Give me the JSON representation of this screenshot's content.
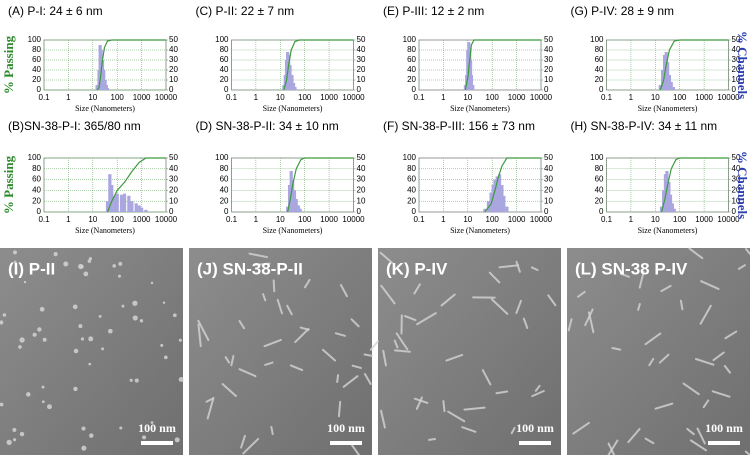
{
  "chart_data": [
    {
      "type": "distribution",
      "title": "(A)   P-I: 24 ±  6 nm",
      "xlabel": "Size (Nanometers)",
      "ylabel": "% Passing",
      "xscale": "log",
      "grid": true,
      "xlim": [
        0.1,
        10000
      ],
      "xticks": [
        0.1,
        1,
        10,
        100,
        1000,
        10000
      ],
      "ylim": [
        0,
        100
      ],
      "yticks": [
        0,
        20,
        40,
        60,
        80,
        100
      ],
      "y2lim": [
        0,
        50
      ],
      "y2ticks": [
        0,
        10,
        20,
        30,
        40,
        50
      ],
      "channels": {
        "color": "#a9a6e0",
        "x": [
          15,
          18,
          20,
          22,
          25,
          28,
          32,
          36,
          40
        ],
        "values": [
          5,
          20,
          45,
          40,
          30,
          20,
          10,
          5,
          2
        ]
      },
      "passing": {
        "color": "#3c9a3c",
        "x": [
          15,
          18,
          20,
          25,
          30,
          40,
          60,
          10000
        ],
        "values": [
          0,
          5,
          20,
          60,
          85,
          98,
          100,
          100
        ]
      }
    },
    {
      "type": "distribution",
      "title": "(C)   P-II: 22 ±  7 nm",
      "xlabel": "Size (Nanometers)",
      "xscale": "log",
      "grid": true,
      "xlim": [
        0.1,
        10000
      ],
      "xticks": [
        0.1,
        1,
        10,
        100,
        1000,
        10000
      ],
      "ylim": [
        0,
        100
      ],
      "yticks": [
        0,
        20,
        40,
        60,
        80,
        100
      ],
      "y2lim": [
        0,
        50
      ],
      "y2ticks": [
        0,
        10,
        20,
        30,
        40,
        50
      ],
      "channels": {
        "color": "#a9a6e0",
        "x": [
          14,
          16,
          18,
          20,
          22,
          25,
          30,
          35,
          40
        ],
        "values": [
          5,
          15,
          30,
          38,
          35,
          25,
          15,
          7,
          3
        ]
      },
      "passing": {
        "color": "#3c9a3c",
        "x": [
          14,
          18,
          22,
          28,
          40,
          60,
          10000
        ],
        "values": [
          0,
          20,
          50,
          80,
          97,
          100,
          100
        ]
      }
    },
    {
      "type": "distribution",
      "title": "(E)   P-III: 12 ± 2 nm",
      "xlabel": "Size (Nanometers)",
      "xscale": "log",
      "grid": true,
      "xlim": [
        0.1,
        10000
      ],
      "xticks": [
        0.1,
        1,
        10,
        100,
        1000,
        10000
      ],
      "ylim": [
        0,
        100
      ],
      "yticks": [
        0,
        20,
        40,
        60,
        80,
        100
      ],
      "y2lim": [
        0,
        50
      ],
      "y2ticks": [
        0,
        10,
        20,
        30,
        40,
        50
      ],
      "channels": {
        "color": "#a9a6e0",
        "x": [
          8,
          9,
          10,
          11,
          12,
          13,
          14,
          16
        ],
        "values": [
          5,
          15,
          40,
          48,
          42,
          30,
          15,
          5
        ]
      },
      "passing": {
        "color": "#3c9a3c",
        "x": [
          8,
          10,
          12,
          14,
          18,
          10000
        ],
        "values": [
          0,
          25,
          60,
          90,
          100,
          100
        ]
      }
    },
    {
      "type": "distribution",
      "title": "(G)   P-IV: 28 ± 9 nm",
      "xlabel": "Size (Nanometers)",
      "y2label": "% Channels",
      "xscale": "log",
      "grid": true,
      "xlim": [
        0.1,
        10000
      ],
      "xticks": [
        0.1,
        1,
        10,
        100,
        1000,
        10000
      ],
      "ylim": [
        0,
        100
      ],
      "yticks": [
        0,
        20,
        40,
        60,
        80,
        100
      ],
      "y2lim": [
        0,
        50
      ],
      "y2ticks": [
        0,
        10,
        20,
        30,
        40,
        50
      ],
      "channels": {
        "color": "#a9a6e0",
        "x": [
          16,
          20,
          24,
          28,
          32,
          38,
          45,
          55
        ],
        "values": [
          5,
          20,
          35,
          38,
          28,
          15,
          8,
          3
        ]
      },
      "passing": {
        "color": "#3c9a3c",
        "x": [
          16,
          22,
          28,
          38,
          60,
          100,
          10000
        ],
        "values": [
          0,
          20,
          50,
          80,
          98,
          100,
          100
        ]
      }
    },
    {
      "type": "distribution",
      "title": "(B)SN-38-P-I: 365/80 nm",
      "xlabel": "Size (Nanometers)",
      "ylabel": "% Passing",
      "xscale": "log",
      "grid": true,
      "xlim": [
        0.1,
        10000
      ],
      "xticks": [
        0.1,
        1,
        10,
        100,
        1000,
        10000
      ],
      "ylim": [
        0,
        100
      ],
      "yticks": [
        0,
        20,
        40,
        60,
        80,
        100
      ],
      "y2lim": [
        0,
        50
      ],
      "y2ticks": [
        0,
        10,
        20,
        30,
        40,
        50
      ],
      "channels": {
        "color": "#a9a6e0",
        "x": [
          40,
          50,
          60,
          80,
          100,
          150,
          200,
          300,
          400,
          600,
          800,
          1000,
          1500
        ],
        "values": [
          10,
          35,
          25,
          15,
          17,
          16,
          17,
          15,
          10,
          8,
          6,
          4,
          2
        ]
      },
      "passing": {
        "color": "#3c9a3c",
        "x": [
          40,
          60,
          100,
          200,
          400,
          800,
          1500,
          10000
        ],
        "values": [
          0,
          20,
          40,
          55,
          75,
          92,
          100,
          100
        ]
      }
    },
    {
      "type": "distribution",
      "title": "(D)  SN-38-P-II: 34 ± 10 nm",
      "xlabel": "Size (Nanometers)",
      "xscale": "log",
      "grid": true,
      "xlim": [
        0.1,
        10000
      ],
      "xticks": [
        0.1,
        1,
        10,
        100,
        1000,
        10000
      ],
      "ylim": [
        0,
        100
      ],
      "yticks": [
        0,
        20,
        40,
        60,
        80,
        100
      ],
      "y2lim": [
        0,
        50
      ],
      "y2ticks": [
        0,
        10,
        20,
        30,
        40,
        50
      ],
      "channels": {
        "color": "#a9a6e0",
        "x": [
          20,
          24,
          28,
          32,
          38,
          45,
          55,
          65
        ],
        "values": [
          5,
          25,
          38,
          30,
          20,
          12,
          6,
          3
        ]
      },
      "passing": {
        "color": "#3c9a3c",
        "x": [
          20,
          26,
          32,
          45,
          70,
          100,
          10000
        ],
        "values": [
          0,
          25,
          50,
          80,
          97,
          100,
          100
        ]
      }
    },
    {
      "type": "distribution",
      "title": "(F) SN-38-P-III:  156 ±  73 nm",
      "xlabel": "Size (Nanometers)",
      "xscale": "log",
      "grid": true,
      "xlim": [
        0.1,
        10000
      ],
      "xticks": [
        0.1,
        1,
        10,
        100,
        1000,
        10000
      ],
      "ylim": [
        0,
        100
      ],
      "yticks": [
        0,
        20,
        40,
        60,
        80,
        100
      ],
      "y2lim": [
        0,
        50
      ],
      "y2ticks": [
        0,
        10,
        20,
        30,
        40,
        50
      ],
      "channels": {
        "color": "#a9a6e0",
        "x": [
          50,
          70,
          90,
          110,
          130,
          160,
          200,
          250,
          300,
          400
        ],
        "values": [
          3,
          10,
          18,
          25,
          30,
          33,
          35,
          25,
          15,
          5
        ]
      },
      "passing": {
        "color": "#3c9a3c",
        "x": [
          50,
          90,
          130,
          180,
          250,
          400,
          10000
        ],
        "values": [
          0,
          15,
          40,
          65,
          85,
          100,
          100
        ]
      }
    },
    {
      "type": "distribution",
      "title": "(H)  SN-38-P-IV: 34 ±  11 nm",
      "xlabel": "Size (Nanometers)",
      "y2label": "% Channels",
      "xscale": "log",
      "grid": true,
      "xlim": [
        0.1,
        10000
      ],
      "xticks": [
        0.1,
        1,
        10,
        100,
        1000,
        10000
      ],
      "ylim": [
        0,
        100
      ],
      "yticks": [
        0,
        20,
        40,
        60,
        80,
        100
      ],
      "y2lim": [
        0,
        50
      ],
      "y2ticks": [
        0,
        10,
        20,
        30,
        40,
        50
      ],
      "channels": {
        "color": "#a9a6e0",
        "x": [
          18,
          22,
          26,
          30,
          36,
          42,
          50,
          60
        ],
        "values": [
          5,
          20,
          35,
          38,
          28,
          16,
          8,
          3
        ]
      },
      "passing": {
        "color": "#3c9a3c",
        "x": [
          18,
          25,
          32,
          45,
          70,
          100,
          10000
        ],
        "values": [
          0,
          25,
          50,
          80,
          97,
          100,
          100
        ]
      }
    }
  ],
  "micrographs": [
    {
      "label": "(I) P-II",
      "scale_bar": "100 nm"
    },
    {
      "label": "(J) SN-38-P-II",
      "scale_bar": "100 nm"
    },
    {
      "label": "(K) P-IV",
      "scale_bar": "100 nm"
    },
    {
      "label": "(L) SN-38 P-IV",
      "scale_bar": "100 nm"
    }
  ]
}
